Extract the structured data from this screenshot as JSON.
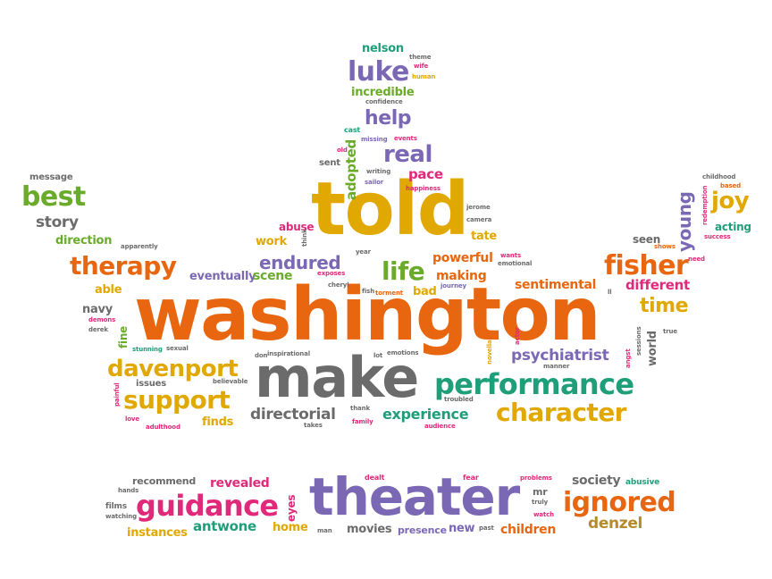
{
  "colors": {
    "orange": "#e8660f",
    "gold": "#e0a800",
    "green": "#6aab2b",
    "teal": "#1f9e7a",
    "purple": "#7b68b5",
    "pink": "#e0297a",
    "gray": "#6b6b6b",
    "brown": "#b58a2a"
  },
  "words": {
    "washington": "washington",
    "told": "told",
    "make": "make",
    "theater": "theater",
    "performance": "performance",
    "character": "character",
    "davenport": "davenport",
    "support": "support",
    "therapy": "therapy",
    "fisher": "fisher",
    "guidance": "guidance",
    "ignored": "ignored",
    "luke": "luke",
    "real": "real",
    "best": "best",
    "life": "life",
    "endured": "endured",
    "joy": "joy",
    "young": "young",
    "help": "help",
    "adopted": "adopted",
    "psychiatrist": "psychiatrist",
    "experience": "experience",
    "directorial": "directorial",
    "time": "time",
    "different": "different",
    "sentimental": "sentimental",
    "powerful": "powerful",
    "making": "making",
    "pace": "pace",
    "incredible": "incredible",
    "nelson": "nelson",
    "story": "story",
    "message": "message",
    "direction": "direction",
    "able": "able",
    "navy": "navy",
    "fine": "fine",
    "eventually": "eventually",
    "scene": "scene",
    "work": "work",
    "abuse": "abuse",
    "issues": "issues",
    "finds": "finds",
    "antwone": "antwone",
    "revealed": "revealed",
    "recommend": "recommend",
    "instances": "instances",
    "home": "home",
    "eyes": "eyes",
    "movies": "movies",
    "presence": "presence",
    "new": "new",
    "children": "children",
    "denzel": "denzel",
    "society": "society",
    "abusive": "abusive",
    "acting": "acting",
    "seen": "seen",
    "world": "world",
    "tate": "tate",
    "bad": "bad",
    "sent": "sent",
    "cast": "cast",
    "confidence": "confidence",
    "theme": "theme",
    "wife": "wife",
    "human": "human",
    "missing": "missing",
    "events": "events",
    "old": "old",
    "writing": "writing",
    "sailor": "sailor",
    "happiness": "happiness",
    "jerome": "jerome",
    "camera": "camera",
    "wants": "wants",
    "emotional": "emotional",
    "journey": "journey",
    "torment": "torment",
    "fish": "fish",
    "exposes": "exposes",
    "cheryl": "cheryl",
    "year": "year",
    "think": "think",
    "apparently": "apparently",
    "demons": "demons",
    "derek": "derek",
    "stunning": "stunning",
    "sexual": "sexual",
    "don": "don",
    "inspirational": "inspirational",
    "lot": "lot",
    "emotions": "emotions",
    "believable": "believable",
    "thank": "thank",
    "family": "family",
    "takes": "takes",
    "audience": "audience",
    "troubled": "troubled",
    "novella": "novella",
    "actor": "actor",
    "manner": "manner",
    "angst": "angst",
    "sessions": "sessions",
    "true": "true",
    "ll": "ll",
    "childhood": "childhood",
    "based": "based",
    "redemption": "redemption",
    "success": "success",
    "shows": "shows",
    "need": "need",
    "painful": "painful",
    "love": "love",
    "adulthood": "adulthood",
    "hands": "hands",
    "films": "films",
    "watching": "watching",
    "man": "man",
    "dealt": "dealt",
    "fear": "fear",
    "past": "past",
    "problems": "problems",
    "mr": "mr",
    "truly": "truly",
    "watch": "watch"
  }
}
